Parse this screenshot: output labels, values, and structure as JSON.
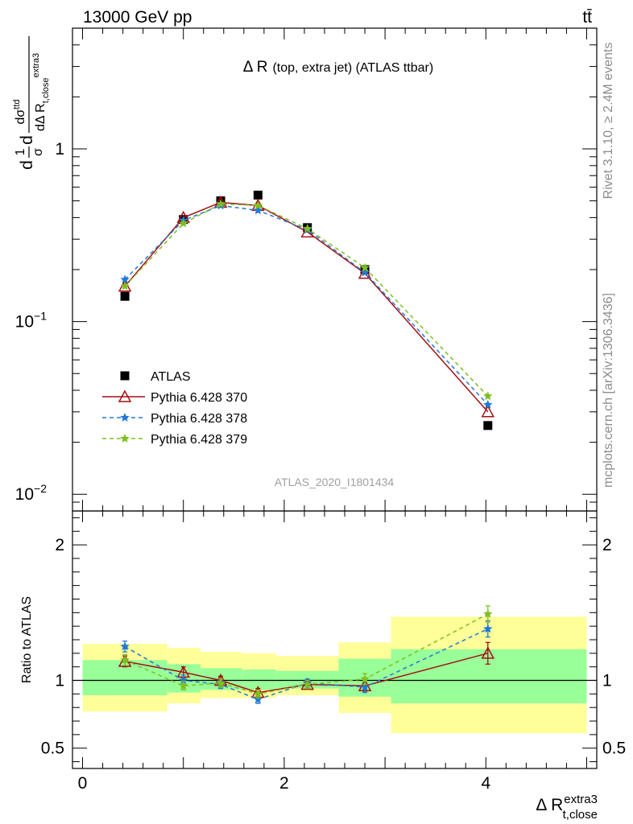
{
  "header": {
    "energy_label": "13000 GeV pp",
    "process_label": "tt̄"
  },
  "side_labels": {
    "rivet": "Rivet 3.1.10, ≥ 2.4M events",
    "mcplots": "mcplots.cern.ch [arXiv:1306.3436]"
  },
  "watermark": "ATLAS_2020_I1801434",
  "colors": {
    "data": "#000000",
    "p370": "#a50f15",
    "p378": "#2079d6",
    "p379": "#7fbf1f",
    "band_outer": "#ffff99",
    "band_inner": "#99ff99"
  },
  "chart_data": [
    {
      "type": "scatter",
      "panel": "main",
      "title": "Δ R (top, extra jet) (ATLAS ttbar)",
      "title_main": "Δ R",
      "title_detail": "(top, extra jet) (ATLAS ttbar)",
      "ylabel": "dσ/dΔ R_{t,close}^{extra3} (1/σ)",
      "ylabel_parts": {
        "prefix": "d",
        "frac_num": "1",
        "frac_den": "σ",
        "d": "d",
        "num": "dσ",
        "num_sup": "ttd",
        "den": "dΔ R",
        "den_sub": "t,close",
        "den_sup": "extra3"
      },
      "yscale": "log",
      "ylim": [
        0.008,
        5
      ],
      "xlim": [
        -0.1,
        5.1
      ],
      "yticks": [
        {
          "value": 0.01,
          "base": "10",
          "exp": "−2"
        },
        {
          "value": 0.1,
          "base": "10",
          "exp": "−1"
        },
        {
          "value": 1,
          "base": "1",
          "exp": ""
        }
      ],
      "legend_placement": "lower-left",
      "series": [
        {
          "name": "ATLAS",
          "marker": "square",
          "x": [
            0.42,
            1.0,
            1.37,
            1.74,
            2.23,
            2.8,
            4.02
          ],
          "y": [
            0.14,
            0.39,
            0.5,
            0.54,
            0.35,
            0.2,
            0.025
          ]
        },
        {
          "name": "Pythia 6.428 370",
          "marker": "open-triangle",
          "line": "solid",
          "x": [
            0.42,
            1.0,
            1.37,
            1.74,
            2.23,
            2.8,
            4.02
          ],
          "y": [
            0.16,
            0.4,
            0.49,
            0.47,
            0.33,
            0.19,
            0.03
          ]
        },
        {
          "name": "Pythia 6.428 378",
          "marker": "star",
          "line": "dashed",
          "x": [
            0.42,
            1.0,
            1.37,
            1.74,
            2.23,
            2.8,
            4.02
          ],
          "y": [
            0.175,
            0.385,
            0.47,
            0.44,
            0.34,
            0.192,
            0.033
          ]
        },
        {
          "name": "Pythia 6.428 379",
          "marker": "star",
          "line": "dashed",
          "x": [
            0.42,
            1.0,
            1.37,
            1.74,
            2.23,
            2.8,
            4.02
          ],
          "y": [
            0.16,
            0.37,
            0.48,
            0.47,
            0.345,
            0.205,
            0.037
          ]
        }
      ]
    },
    {
      "type": "scatter",
      "panel": "ratio",
      "ylabel": "Ratio to ATLAS",
      "xlabel": "Δ R_{t,close}^{extra3}",
      "xlabel_main": "Δ R",
      "xlabel_sup": "extra3",
      "xlabel_sub": "t,close",
      "ylim": [
        0.35,
        2.25
      ],
      "xlim": [
        -0.1,
        5.1
      ],
      "yticks": [
        0.5,
        1,
        2
      ],
      "ytick_labels": [
        "0.5",
        "1",
        "2"
      ],
      "xticks": [
        0,
        2,
        4
      ],
      "xtick_labels": [
        "0",
        "2",
        "4"
      ],
      "reference_line": 1,
      "bands": [
        {
          "x0": 0.0,
          "x1": 0.84,
          "outer": [
            0.77,
            1.27
          ],
          "inner": [
            0.89,
            1.15
          ]
        },
        {
          "x0": 0.84,
          "x1": 1.17,
          "outer": [
            0.83,
            1.24
          ],
          "inner": [
            0.91,
            1.12
          ]
        },
        {
          "x0": 1.17,
          "x1": 1.58,
          "outer": [
            0.87,
            1.21
          ],
          "inner": [
            0.93,
            1.09
          ]
        },
        {
          "x0": 1.58,
          "x1": 1.92,
          "outer": [
            0.87,
            1.2
          ],
          "inner": [
            0.93,
            1.08
          ]
        },
        {
          "x0": 1.92,
          "x1": 2.54,
          "outer": [
            0.89,
            1.18
          ],
          "inner": [
            0.94,
            1.07
          ]
        },
        {
          "x0": 2.54,
          "x1": 3.06,
          "outer": [
            0.76,
            1.28
          ],
          "inner": [
            0.88,
            1.16
          ]
        },
        {
          "x0": 3.06,
          "x1": 5.0,
          "outer": [
            0.61,
            1.47
          ],
          "inner": [
            0.83,
            1.23
          ]
        }
      ],
      "series": [
        {
          "name": "Pythia 6.428 370",
          "x": [
            0.42,
            1.0,
            1.37,
            1.74,
            2.23,
            2.8,
            4.02
          ],
          "y": [
            1.14,
            1.06,
            1.0,
            0.91,
            0.97,
            0.96,
            1.2
          ],
          "err": [
            0.04,
            0.04,
            0.03,
            0.03,
            0.03,
            0.04,
            0.08
          ]
        },
        {
          "name": "Pythia 6.428 378",
          "x": [
            0.42,
            1.0,
            1.37,
            1.74,
            2.23,
            2.8,
            4.02
          ],
          "y": [
            1.25,
            1.0,
            0.97,
            0.86,
            0.98,
            0.95,
            1.38
          ],
          "err": [
            0.04,
            0.04,
            0.03,
            0.03,
            0.03,
            0.04,
            0.06
          ]
        },
        {
          "name": "Pythia 6.428 379",
          "x": [
            0.42,
            1.0,
            1.37,
            1.74,
            2.23,
            2.8,
            4.02
          ],
          "y": [
            1.15,
            0.96,
            0.98,
            0.9,
            0.97,
            1.01,
            1.49
          ],
          "err": [
            0.04,
            0.03,
            0.03,
            0.03,
            0.03,
            0.04,
            0.06
          ]
        }
      ]
    }
  ]
}
